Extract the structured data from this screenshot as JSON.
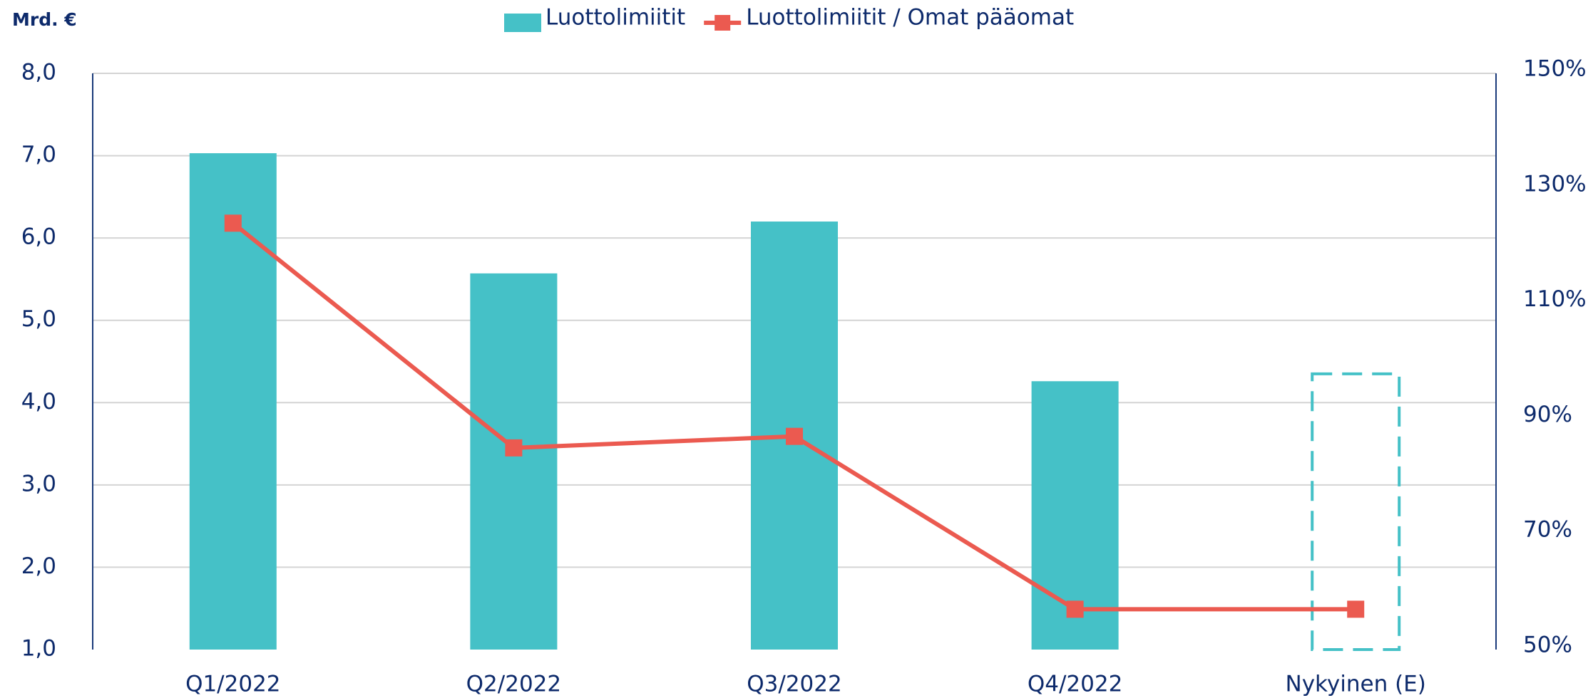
{
  "chart_data": {
    "type": "bar_line",
    "y_axis_label": "Mrd. €",
    "categories": [
      "Q1/2022",
      "Q2/2022",
      "Q3/2022",
      "Q4/2022",
      "Nykyinen (E)"
    ],
    "series": [
      {
        "name": "Luottolimiitit",
        "type": "bar",
        "color": "#45c1c7",
        "values": [
          7.03,
          5.57,
          6.2,
          4.26,
          4.35
        ],
        "bar_styles": [
          "solid",
          "solid",
          "solid",
          "solid",
          "dashed"
        ]
      },
      {
        "name": "Luottolimiitit / Omat pääomat",
        "type": "line",
        "axis": "y2",
        "color": "#eb5a50",
        "values": [
          124,
          85,
          87,
          57,
          57
        ]
      }
    ],
    "ylim": [
      1,
      8
    ],
    "yticks": [
      {
        "value": 1,
        "label": "1,0"
      },
      {
        "value": 2,
        "label": "2,0"
      },
      {
        "value": 3,
        "label": "3,0"
      },
      {
        "value": 4,
        "label": "4,0"
      },
      {
        "value": 5,
        "label": "5,0"
      },
      {
        "value": 6,
        "label": "6,0"
      },
      {
        "value": 7,
        "label": "7,0"
      },
      {
        "value": 8,
        "label": "8,0"
      }
    ],
    "y2lim": [
      50,
      150
    ],
    "y2ticks": [
      {
        "value": 50,
        "label": "50%"
      },
      {
        "value": 70,
        "label": "70%"
      },
      {
        "value": 90,
        "label": "90%"
      },
      {
        "value": 110,
        "label": "110%"
      },
      {
        "value": 130,
        "label": "130%"
      },
      {
        "value": 150,
        "label": "150%"
      }
    ],
    "grid": true,
    "legend": "top"
  }
}
